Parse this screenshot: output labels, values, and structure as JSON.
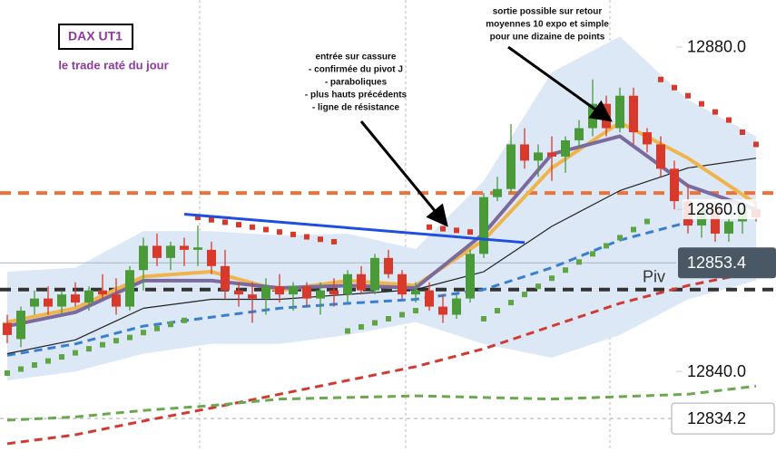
{
  "chart_data": {
    "type": "candlestick",
    "title": "DAX UT1",
    "subtitle": "le trade raté du jour",
    "ylim": [
      12830.2,
      12885.8
    ],
    "yticks": [
      {
        "value": 12880,
        "label": "12880.0"
      },
      {
        "value": 12860,
        "label": "12860.0"
      },
      {
        "value": 12840,
        "label": "12840.0"
      }
    ],
    "colors": {
      "up": "#4a9a3a",
      "down": "#d8392b"
    },
    "candles": [
      [
        12846,
        12847,
        12843.5,
        12844.5
      ],
      [
        12844,
        12848,
        12843,
        12847.5
      ],
      [
        12848,
        12850,
        12847,
        12849
      ],
      [
        12849,
        12850.5,
        12847,
        12848
      ],
      [
        12848,
        12850,
        12847,
        12849.5
      ],
      [
        12849.5,
        12851,
        12848,
        12848.5
      ],
      [
        12848.5,
        12850.5,
        12847.5,
        12850
      ],
      [
        12850,
        12852,
        12849,
        12849.5
      ],
      [
        12849.5,
        12851.5,
        12847,
        12848
      ],
      [
        12848,
        12853,
        12847.5,
        12852.5
      ],
      [
        12852.5,
        12856.5,
        12850,
        12855.5
      ],
      [
        12855.5,
        12857,
        12853,
        12854
      ],
      [
        12854,
        12856,
        12852.5,
        12855.5
      ],
      [
        12855.5,
        12856.5,
        12853,
        12855
      ],
      [
        12855,
        12858,
        12853,
        12855.3
      ],
      [
        12855,
        12856,
        12852,
        12853
      ],
      [
        12853,
        12855,
        12849,
        12850
      ],
      [
        12850,
        12851,
        12848,
        12849.5
      ],
      [
        12849.5,
        12851,
        12846,
        12849
      ],
      [
        12849,
        12851.5,
        12847,
        12850.5
      ],
      [
        12850.5,
        12852,
        12848.5,
        12849.5
      ],
      [
        12849.5,
        12851,
        12847.5,
        12850.5
      ],
      [
        12850.5,
        12851,
        12848,
        12849
      ],
      [
        12849,
        12851,
        12847,
        12850
      ],
      [
        12850,
        12851.5,
        12848,
        12849.5
      ],
      [
        12849.5,
        12852.5,
        12848.5,
        12852
      ],
      [
        12852,
        12853,
        12849.5,
        12850
      ],
      [
        12850,
        12854.5,
        12849.5,
        12854
      ],
      [
        12854,
        12855,
        12851.5,
        12852
      ],
      [
        12852,
        12852.5,
        12849,
        12849.5
      ],
      [
        12849.5,
        12851,
        12848.5,
        12850
      ],
      [
        12850,
        12851,
        12847.5,
        12848
      ],
      [
        12848,
        12849.5,
        12846,
        12847
      ],
      [
        12847,
        12849.5,
        12846.5,
        12849
      ],
      [
        12849,
        12855,
        12848.5,
        12854.5
      ],
      [
        12854.5,
        12862,
        12854,
        12861.5
      ],
      [
        12861.5,
        12864,
        12861,
        12862.5
      ],
      [
        12862.5,
        12870.5,
        12862,
        12868
      ],
      [
        12868,
        12870,
        12865,
        12866
      ],
      [
        12866,
        12868,
        12864,
        12867
      ],
      [
        12867,
        12869,
        12863.5,
        12866.5
      ],
      [
        12866.5,
        12869,
        12864.5,
        12868.5
      ],
      [
        12868.5,
        12871,
        12867.5,
        12870
      ],
      [
        12870,
        12876,
        12869,
        12873
      ],
      [
        12873,
        12874,
        12869,
        12870
      ],
      [
        12870,
        12875,
        12869.5,
        12874
      ],
      [
        12874,
        12875,
        12868,
        12869.5
      ],
      [
        12869.5,
        12870,
        12867,
        12868
      ],
      [
        12868,
        12869,
        12864,
        12865
      ],
      [
        12865,
        12866,
        12860,
        12861
      ],
      [
        12861,
        12863,
        12857,
        12858
      ],
      [
        12858,
        12861,
        12856.5,
        12860
      ],
      [
        12860,
        12861,
        12856,
        12857
      ],
      [
        12857,
        12859,
        12856,
        12858.5
      ],
      [
        12858.5,
        12861,
        12857,
        12860
      ],
      [
        12860,
        12861,
        12858.5,
        12859
      ]
    ],
    "line_x": [
      0,
      5,
      10,
      15,
      20,
      25,
      30,
      35,
      40,
      45,
      50,
      55
    ],
    "band": {
      "color": "#dce8f6",
      "upper": [
        12852.3,
        12852.8,
        12857.3,
        12857.3,
        12856.8,
        12857,
        12855.1,
        12863.5,
        12876.9,
        12881.3,
        12873.5,
        12869
      ],
      "lower": [
        12838.9,
        12840,
        12842.2,
        12843.4,
        12843.4,
        12844.5,
        12846.1,
        12843.4,
        12841.7,
        12844.5,
        12848.9,
        12851.2
      ]
    },
    "series": [
      {
        "color": "#3a7fcf",
        "dash": "9 6",
        "width": 3,
        "values": [
          12842,
          12843.4,
          12845.6,
          12846.7,
          12847.8,
          12848.4,
          12848.9,
          12850.1,
          12852.8,
          12856.2,
          12858.4,
          12860.1
        ]
      },
      {
        "color": "#d03a32",
        "dash": "9 6",
        "width": 3,
        "values": [
          12831.1,
          12832.2,
          12833.9,
          12835.5,
          12837.2,
          12838.9,
          12840.6,
          12842.8,
          12845.6,
          12848.4,
          12850.6,
          12852.3
        ]
      },
      {
        "color": "#6aa84f",
        "dash": "9 6",
        "width": 3,
        "values": [
          12834,
          12834.4,
          12835.2,
          12835.8,
          12836.6,
          12836.8,
          12837,
          12836.8,
          12836.6,
          12836.9,
          12837.2,
          12838.2
        ]
      },
      {
        "color": "#222222",
        "dash": "none",
        "width": 1.2,
        "values": [
          12842.2,
          12843.9,
          12847.8,
          12848.9,
          12848.9,
          12849.5,
          12850.1,
          12852.3,
          12857.9,
          12862.3,
          12865.1,
          12866.3
        ]
      },
      {
        "color": "#f0b44c",
        "dash": "none",
        "width": 4,
        "values": [
          12846.1,
          12847.8,
          12851.7,
          12852.3,
          12850,
          12851.2,
          12850.6,
          12856.2,
          12865.1,
          12870.7,
          12866.3,
          12860.7
        ]
      },
      {
        "color": "#7b6a9e",
        "dash": "none",
        "width": 4,
        "values": [
          12845.6,
          12847.3,
          12851.2,
          12851.2,
          12850.3,
          12850.6,
          12850.3,
          12857,
          12866.8,
          12869,
          12862.9,
          12860
        ]
      }
    ],
    "sar": {
      "up_color": "#5fa544",
      "down_color": "#d8392b",
      "values": [
        12839.8,
        12840.3,
        12840.8,
        12841.3,
        12841.8,
        12842.3,
        12842.8,
        12843.3,
        12843.8,
        12844.2,
        12844.8,
        12845.3,
        12845.8,
        12846.3,
        12859,
        12858.7,
        12858.4,
        12858.1,
        12857.8,
        12857.5,
        12857.2,
        12856.9,
        12856.6,
        12856.3,
        12856,
        12845,
        12845.5,
        12846,
        12846.5,
        12847,
        12847.5,
        12857.8,
        12857.6,
        12857.4,
        12857.2,
        12846.5,
        12847.5,
        12848.5,
        12849.5,
        12850.5,
        12851.5,
        12852.5,
        12853.5,
        12854.5,
        12855.5,
        12856.5,
        12857.5,
        12858.5,
        12876,
        12875,
        12874,
        12873,
        12872,
        12871,
        12869.5,
        12868
      ]
    },
    "levels": [
      {
        "value": 12862,
        "color": "#e8733d",
        "dash": "12 8",
        "width": 4
      },
      {
        "value": 12850.1,
        "color": "#333333",
        "dash": "12 8",
        "width": 4,
        "label": "Piv"
      }
    ],
    "trendline": {
      "x": [
        13,
        38
      ],
      "values": [
        12859.4,
        12855.9
      ],
      "color": "#1f4fe0"
    },
    "price_tags": [
      {
        "value": 12853.4,
        "bg": "#4a5866",
        "fg": "#ffffff",
        "line": "#a8b4c0"
      },
      {
        "value": 12834.2,
        "bg": "#ffffff",
        "fg": "#111111",
        "line": "#aaaaaa"
      }
    ],
    "annotations": [
      {
        "lines": [
          "entrée sur cassure",
          "- confirmée du pivot J",
          "- paraboliques",
          "- plus hauts précédents",
          "- ligne de résistance"
        ]
      },
      {
        "lines": [
          "sortie possible sur retour",
          "moyennes 10 expo et simple",
          "pour une dizaine de points"
        ]
      }
    ]
  }
}
